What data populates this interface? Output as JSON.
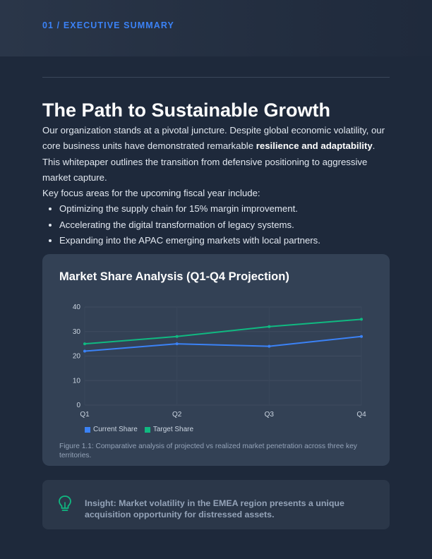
{
  "header": {
    "section_label": "01 / EXECUTIVE SUMMARY"
  },
  "article": {
    "title": "The Path to Sustainable Growth",
    "intro": {
      "part1": "Our organization stands at a pivotal juncture. Despite global economic volatility, our core business units have demonstrated remarkable ",
      "emphasis": "resilience and adaptability",
      "part2": ". This whitepaper outlines the transition from defensive positioning to aggressive market capture."
    },
    "focus_intro": "Key focus areas for the upcoming fiscal year include:",
    "bullets": [
      "Optimizing the supply chain for 15% margin improvement.",
      "Accelerating the digital transformation of legacy systems.",
      "Expanding into the APAC emerging markets with local partners."
    ]
  },
  "chart": {
    "caption": "Figure 1.1: Comparative analysis of projected vs realized market penetration across three key territories."
  },
  "chart_data": {
    "type": "line",
    "title": "Market Share Analysis (Q1-Q4 Projection)",
    "categories": [
      "Q1",
      "Q2",
      "Q3",
      "Q4"
    ],
    "series": [
      {
        "name": "Current Share",
        "values": [
          22,
          25,
          24,
          28
        ],
        "color": "#3b82f6"
      },
      {
        "name": "Target Share",
        "values": [
          25,
          28,
          32,
          35
        ],
        "color": "#10b981"
      }
    ],
    "yticks": [
      0,
      10,
      20,
      30,
      40
    ],
    "ylim": [
      0,
      40
    ],
    "xlabel": "",
    "ylabel": "",
    "legend": "bottom-left",
    "grid": true
  },
  "insight": {
    "icon": "lightbulb-icon",
    "icon_color": "#10b981",
    "text": "Insight: Market volatility in the EMEA region presents a unique acquisition opportunity for distressed assets."
  }
}
